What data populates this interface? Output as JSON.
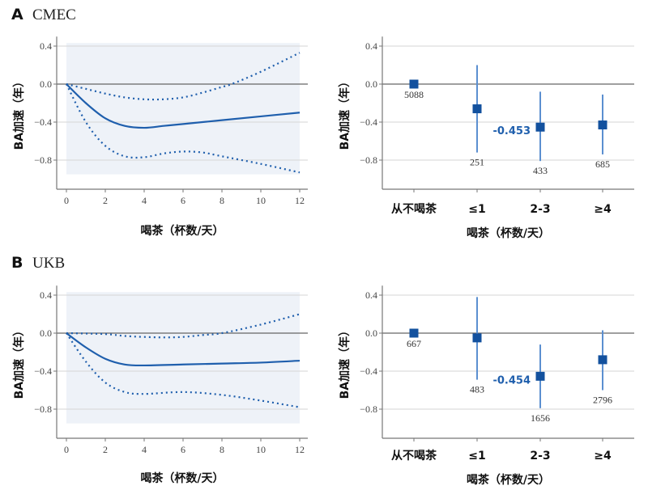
{
  "colors": {
    "line": "#1f5fad",
    "marker": "#13519e",
    "errorbar": "#5b8fd0",
    "band": "#eef2f8",
    "grid": "#d6d6d6",
    "zero": "#666666",
    "axis": "#777777",
    "highlight": "#1f5fad"
  },
  "chart_data": [
    {
      "id": "A-spline",
      "type": "line",
      "panel_letter": "A",
      "cohort": "CMEC",
      "xlabel": "喝茶（杯数/天）",
      "ylabel": "BA加速（年）",
      "xlim": [
        0,
        12
      ],
      "ylim": [
        -1.05,
        0.5
      ],
      "xticks": [
        0,
        2,
        4,
        6,
        8,
        10,
        12
      ],
      "yticks": [
        0.4,
        0.0,
        -0.4,
        -0.8
      ],
      "ytick_labels": [
        "0.4",
        "0.0",
        "−0.4",
        "−0.8"
      ],
      "grid": true,
      "series": [
        {
          "name": "estimate",
          "style": "solid",
          "x": [
            0,
            1,
            2,
            3,
            4,
            5,
            6,
            8,
            10,
            12
          ],
          "y": [
            0,
            -0.2,
            -0.36,
            -0.44,
            -0.46,
            -0.44,
            -0.42,
            -0.38,
            -0.34,
            -0.3
          ]
        },
        {
          "name": "upper_ci",
          "style": "dotted",
          "x": [
            0,
            1,
            2,
            3,
            4,
            5,
            6,
            7,
            8,
            8.5,
            10,
            12
          ],
          "y": [
            0,
            -0.05,
            -0.1,
            -0.14,
            -0.16,
            -0.16,
            -0.14,
            -0.09,
            -0.03,
            0,
            0.13,
            0.33
          ]
        },
        {
          "name": "lower_ci",
          "style": "dotted",
          "x": [
            0,
            1,
            2,
            3,
            4,
            5,
            6,
            7,
            8,
            10,
            12
          ],
          "y": [
            0,
            -0.4,
            -0.65,
            -0.76,
            -0.77,
            -0.73,
            -0.71,
            -0.72,
            -0.76,
            -0.84,
            -0.93
          ]
        }
      ]
    },
    {
      "id": "A-categories",
      "type": "scatter",
      "panel_letter": "",
      "xlabel": "喝茶（杯数/天）",
      "ylabel": "BA加速（年）",
      "ylim": [
        -1.05,
        0.5
      ],
      "yticks": [
        0.4,
        0.0,
        -0.4,
        -0.8
      ],
      "ytick_labels": [
        "0.4",
        "0.0",
        "−0.4",
        "−0.8"
      ],
      "grid": true,
      "categories": [
        "从不喝茶",
        "≤1",
        "2-3",
        "≥4"
      ],
      "values": [
        0,
        -0.26,
        -0.453,
        -0.43
      ],
      "ci_low": [
        null,
        -0.72,
        -0.81,
        -0.74
      ],
      "ci_high": [
        null,
        0.2,
        -0.08,
        -0.11
      ],
      "n": [
        "5088",
        "251",
        "433",
        "685"
      ],
      "annotation": {
        "text": "-0.453",
        "category_index": 2
      }
    },
    {
      "id": "B-spline",
      "type": "line",
      "panel_letter": "B",
      "cohort": "UKB",
      "xlabel": "喝茶（杯数/天）",
      "ylabel": "BA加速（年）",
      "xlim": [
        0,
        12
      ],
      "ylim": [
        -1.05,
        0.5
      ],
      "xticks": [
        0,
        2,
        4,
        6,
        8,
        10,
        12
      ],
      "yticks": [
        0.4,
        0.0,
        -0.4,
        -0.8
      ],
      "ytick_labels": [
        "0.4",
        "0.0",
        "−0.4",
        "−0.8"
      ],
      "grid": true,
      "series": [
        {
          "name": "estimate",
          "style": "solid",
          "x": [
            0,
            1,
            2,
            3,
            4,
            6,
            8,
            10,
            12
          ],
          "y": [
            0,
            -0.15,
            -0.27,
            -0.33,
            -0.34,
            -0.33,
            -0.32,
            -0.31,
            -0.29
          ]
        },
        {
          "name": "upper_ci",
          "style": "dotted",
          "x": [
            0,
            2,
            3,
            4,
            5,
            6,
            7,
            8,
            10,
            12
          ],
          "y": [
            0,
            -0.01,
            -0.03,
            -0.04,
            -0.045,
            -0.04,
            -0.02,
            0,
            0.09,
            0.2
          ]
        },
        {
          "name": "lower_ci",
          "style": "dotted",
          "x": [
            0,
            1,
            2,
            3,
            4,
            6,
            8,
            10,
            12
          ],
          "y": [
            0,
            -0.3,
            -0.52,
            -0.62,
            -0.64,
            -0.62,
            -0.65,
            -0.71,
            -0.78
          ]
        }
      ]
    },
    {
      "id": "B-categories",
      "type": "scatter",
      "panel_letter": "",
      "xlabel": "喝茶（杯数/天）",
      "ylabel": "BA加速（年）",
      "ylim": [
        -1.05,
        0.5
      ],
      "yticks": [
        0.4,
        0.0,
        -0.4,
        -0.8
      ],
      "ytick_labels": [
        "0.4",
        "0.0",
        "−0.4",
        "−0.8"
      ],
      "grid": true,
      "categories": [
        "从不喝茶",
        "≤1",
        "2-3",
        "≥4"
      ],
      "values": [
        0,
        -0.05,
        -0.454,
        -0.28
      ],
      "ci_low": [
        null,
        -0.49,
        -0.79,
        -0.6
      ],
      "ci_high": [
        null,
        0.38,
        -0.12,
        0.03
      ],
      "n": [
        "667",
        "483",
        "1656",
        "2796"
      ],
      "annotation": {
        "text": "-0.454",
        "category_index": 2
      }
    }
  ]
}
